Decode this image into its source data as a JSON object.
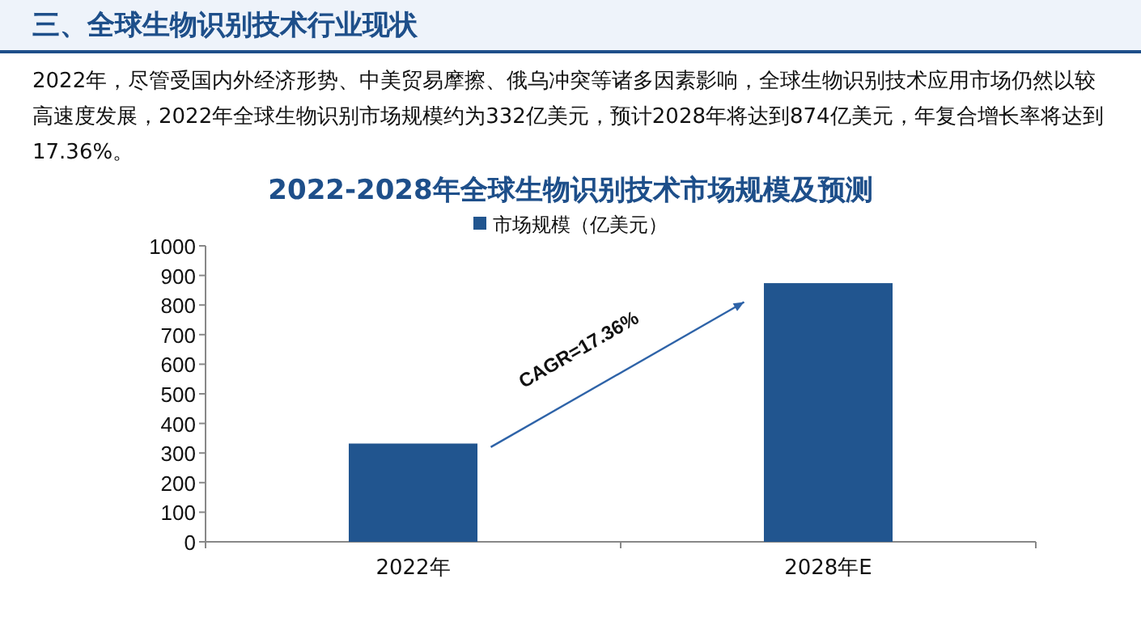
{
  "chart_data": {
    "type": "bar",
    "title": "2022-2028年全球生物识别技术市场规模及预测",
    "annotations": [
      "三、全球生物识别技术行业现状",
      "2022年，尽管受国内外经济形势、中美贸易摩擦、俄乌冲突等诸多因素影响，全球生物识别技术应用市场仍然以较高速度发展，2022年全球生物识别市场规模约为332亿美元，预计2028年将达到874亿美元，年复合增长率将达到17.36%。",
      "CAGR=17.36%"
    ],
    "categories": [
      "2022年",
      "2028年E"
    ],
    "series": [
      {
        "name": "市场规模（亿美元）",
        "color": "#21558f",
        "values": [
          332,
          874
        ]
      }
    ],
    "ylim": [
      0,
      1000
    ],
    "yticks": [
      0,
      100,
      200,
      300,
      400,
      500,
      600,
      700,
      800,
      900,
      1000
    ],
    "grid": false,
    "legend": "top"
  }
}
